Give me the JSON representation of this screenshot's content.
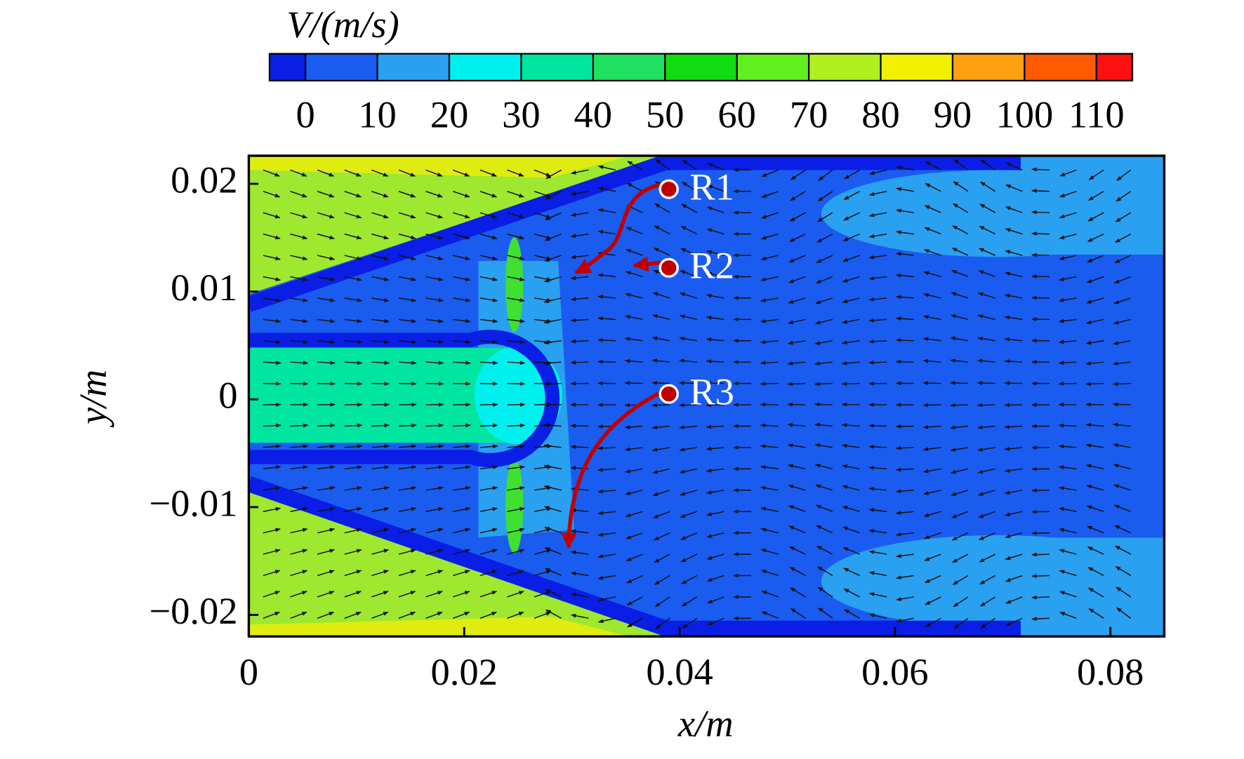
{
  "chart_data": {
    "type": "contour",
    "colorbar": {
      "title": "V/(m/s)",
      "clim": [
        -5,
        115
      ],
      "ticks": [
        0,
        10,
        20,
        30,
        40,
        50,
        60,
        70,
        80,
        90,
        100,
        110
      ],
      "colors": [
        "#0a1ee6",
        "#1a5cf0",
        "#2aa0f0",
        "#00f0f0",
        "#00e6a0",
        "#20e060",
        "#10dc10",
        "#60f020",
        "#b0f020",
        "#f0f000",
        "#ffa010",
        "#ff5a00",
        "#ff1010"
      ]
    },
    "x_label": "x/m",
    "y_label": "y/m",
    "xlim": [
      0,
      0.085
    ],
    "ylim": [
      -0.022,
      0.0226
    ],
    "xticks": [
      0,
      0.02,
      0.04,
      0.06,
      0.08
    ],
    "yticks": [
      0.02,
      0.01,
      0,
      {
        "value": -0.01,
        "label": "−0.01"
      },
      {
        "value": -0.02,
        "label": "−0.02"
      }
    ],
    "annotations": [
      {
        "label": "R1",
        "x": 0.039,
        "y": 0.0195
      },
      {
        "label": "R2",
        "x": 0.039,
        "y": 0.0122
      },
      {
        "label": "R3",
        "x": 0.039,
        "y": 0.0005
      }
    ],
    "annotation_color": "#c00000"
  }
}
